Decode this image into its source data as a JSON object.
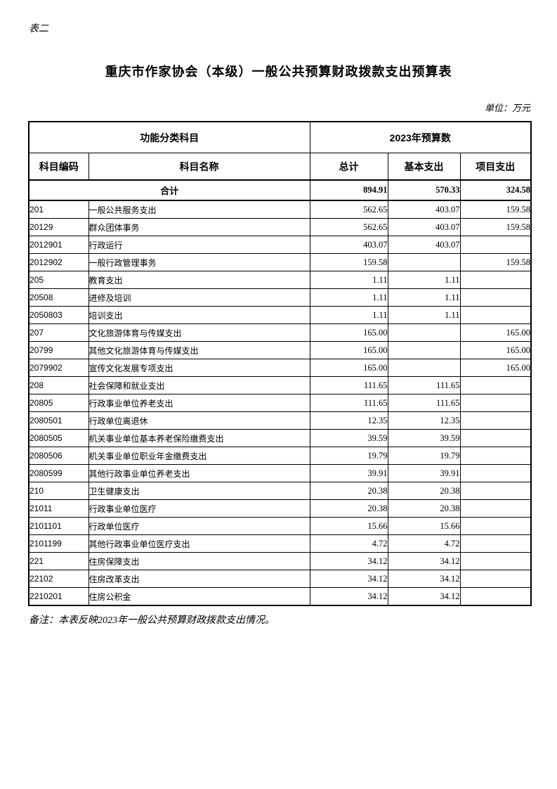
{
  "page": {
    "corner_label": "表二",
    "title": "重庆市作家协会（本级）一般公共预算财政拨款支出预算表",
    "unit_label": "单位：万元",
    "note": "备注：本表反映2023年一般公共预算财政拨款支出情况。",
    "ink_color": "#000000",
    "background_color": "#ffffff"
  },
  "table": {
    "header": {
      "group_left": "功能分类科目",
      "group_right": "2023年预算数",
      "columns": [
        "科目编码",
        "科目名称",
        "总计",
        "基本支出",
        "项目支出"
      ]
    },
    "total_row": {
      "label": "合计",
      "total": "894.91",
      "basic": "570.33",
      "project": "324.58"
    },
    "rows": [
      {
        "code": "201",
        "name": "一般公共服务支出",
        "level": 1,
        "total": "562.65",
        "basic": "403.07",
        "project": "159.58"
      },
      {
        "code": "20129",
        "name": "群众团体事务",
        "level": 2,
        "total": "562.65",
        "basic": "403.07",
        "project": "159.58"
      },
      {
        "code": "2012901",
        "name": "行政运行",
        "level": 3,
        "total": "403.07",
        "basic": "403.07",
        "project": ""
      },
      {
        "code": "2012902",
        "name": "一般行政管理事务",
        "level": 3,
        "total": "159.58",
        "basic": "",
        "project": "159.58"
      },
      {
        "code": "205",
        "name": "教育支出",
        "level": 1,
        "total": "1.11",
        "basic": "1.11",
        "project": ""
      },
      {
        "code": "20508",
        "name": "进修及培训",
        "level": 2,
        "total": "1.11",
        "basic": "1.11",
        "project": ""
      },
      {
        "code": "2050803",
        "name": "培训支出",
        "level": 3,
        "total": "1.11",
        "basic": "1.11",
        "project": ""
      },
      {
        "code": "207",
        "name": "文化旅游体育与传媒支出",
        "level": 1,
        "total": "165.00",
        "basic": "",
        "project": "165.00"
      },
      {
        "code": "20799",
        "name": "其他文化旅游体育与传媒支出",
        "level": 2,
        "total": "165.00",
        "basic": "",
        "project": "165.00"
      },
      {
        "code": "2079902",
        "name": "宣传文化发展专项支出",
        "level": 3,
        "total": "165.00",
        "basic": "",
        "project": "165.00"
      },
      {
        "code": "208",
        "name": "社会保障和就业支出",
        "level": 1,
        "total": "111.65",
        "basic": "111.65",
        "project": ""
      },
      {
        "code": "20805",
        "name": "行政事业单位养老支出",
        "level": 2,
        "total": "111.65",
        "basic": "111.65",
        "project": ""
      },
      {
        "code": "2080501",
        "name": "行政单位离退休",
        "level": 3,
        "total": "12.35",
        "basic": "12.35",
        "project": ""
      },
      {
        "code": "2080505",
        "name": "机关事业单位基本养老保险缴费支出",
        "level": 3,
        "total": "39.59",
        "basic": "39.59",
        "project": ""
      },
      {
        "code": "2080506",
        "name": "机关事业单位职业年金缴费支出",
        "level": 3,
        "total": "19.79",
        "basic": "19.79",
        "project": ""
      },
      {
        "code": "2080599",
        "name": "其他行政事业单位养老支出",
        "level": 3,
        "total": "39.91",
        "basic": "39.91",
        "project": ""
      },
      {
        "code": "210",
        "name": "卫生健康支出",
        "level": 1,
        "total": "20.38",
        "basic": "20.38",
        "project": ""
      },
      {
        "code": "21011",
        "name": "行政事业单位医疗",
        "level": 2,
        "total": "20.38",
        "basic": "20.38",
        "project": ""
      },
      {
        "code": "2101101",
        "name": "行政单位医疗",
        "level": 3,
        "total": "15.66",
        "basic": "15.66",
        "project": ""
      },
      {
        "code": "2101199",
        "name": "其他行政事业单位医疗支出",
        "level": 3,
        "total": "4.72",
        "basic": "4.72",
        "project": ""
      },
      {
        "code": "221",
        "name": "住房保障支出",
        "level": 1,
        "total": "34.12",
        "basic": "34.12",
        "project": ""
      },
      {
        "code": "22102",
        "name": "住房改革支出",
        "level": 2,
        "total": "34.12",
        "basic": "34.12",
        "project": ""
      },
      {
        "code": "2210201",
        "name": "住房公积金",
        "level": 3,
        "total": "34.12",
        "basic": "34.12",
        "project": ""
      }
    ]
  }
}
